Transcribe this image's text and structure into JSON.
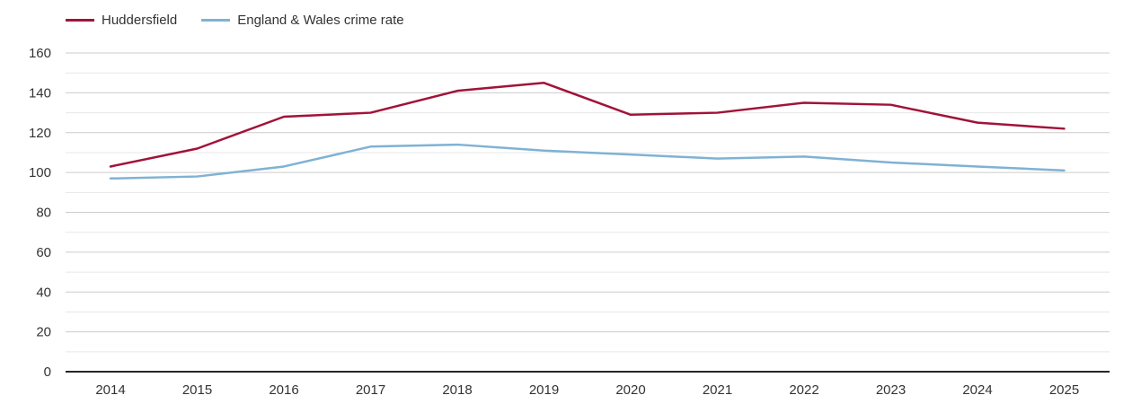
{
  "chart_data": {
    "type": "line",
    "x": [
      2014,
      2015,
      2016,
      2017,
      2018,
      2019,
      2020,
      2021,
      2022,
      2023,
      2024,
      2025
    ],
    "series": [
      {
        "name": "Huddersfield",
        "color": "#a11338",
        "values": [
          103,
          112,
          128,
          130,
          141,
          145,
          129,
          130,
          135,
          134,
          125,
          122
        ]
      },
      {
        "name": "England & Wales crime rate",
        "color": "#7fb2d4",
        "values": [
          97,
          98,
          103,
          113,
          114,
          111,
          109,
          107,
          108,
          105,
          103,
          101
        ]
      }
    ],
    "ylim": [
      0,
      160
    ],
    "y_major_step": 20,
    "y_minor_step": 10,
    "grid": true,
    "legend_position": "top-left",
    "colors": {
      "major_grid": "#cccccc",
      "minor_grid": "#e7e7e7",
      "axis_line": "#262626",
      "tick_text": "#333333"
    }
  }
}
